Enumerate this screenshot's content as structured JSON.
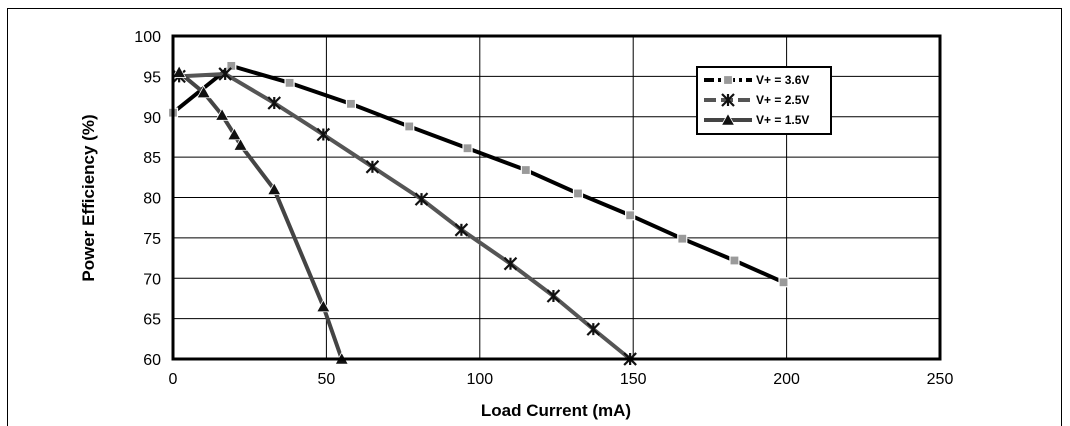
{
  "chart_data": {
    "type": "line",
    "xlabel": "Load Current (mA)",
    "ylabel": "Power Efficiency (%)",
    "xlim": [
      0,
      250
    ],
    "ylim": [
      60,
      100
    ],
    "x_ticks": [
      0,
      50,
      100,
      150,
      200,
      250
    ],
    "y_ticks": [
      60,
      65,
      70,
      75,
      80,
      85,
      90,
      95,
      100
    ],
    "grid": true,
    "legend_position": "top-right",
    "series": [
      {
        "name": "V+ = 3.6V",
        "color": "#000000",
        "marker": "square",
        "x": [
          0,
          19,
          38,
          58,
          77,
          96,
          115,
          132,
          149,
          166,
          183,
          199
        ],
        "y": [
          90.5,
          96.3,
          94.2,
          91.6,
          88.8,
          86.1,
          83.4,
          80.5,
          77.8,
          74.9,
          72.2,
          69.5
        ]
      },
      {
        "name": "V+ = 2.5V",
        "color": "#555555",
        "marker": "asterisk",
        "x": [
          2,
          17,
          33,
          49,
          65,
          81,
          94,
          110,
          124,
          137,
          149
        ],
        "y": [
          95.0,
          95.3,
          91.7,
          87.8,
          83.8,
          79.8,
          76.0,
          71.8,
          67.8,
          63.7,
          60.0
        ]
      },
      {
        "name": "V+ = 1.5V",
        "color": "#444444",
        "marker": "triangle",
        "x": [
          2,
          10,
          16,
          20,
          22,
          33,
          49,
          55
        ],
        "y": [
          95.5,
          93.0,
          90.2,
          87.8,
          86.5,
          81.0,
          66.5,
          60.0
        ]
      }
    ]
  }
}
